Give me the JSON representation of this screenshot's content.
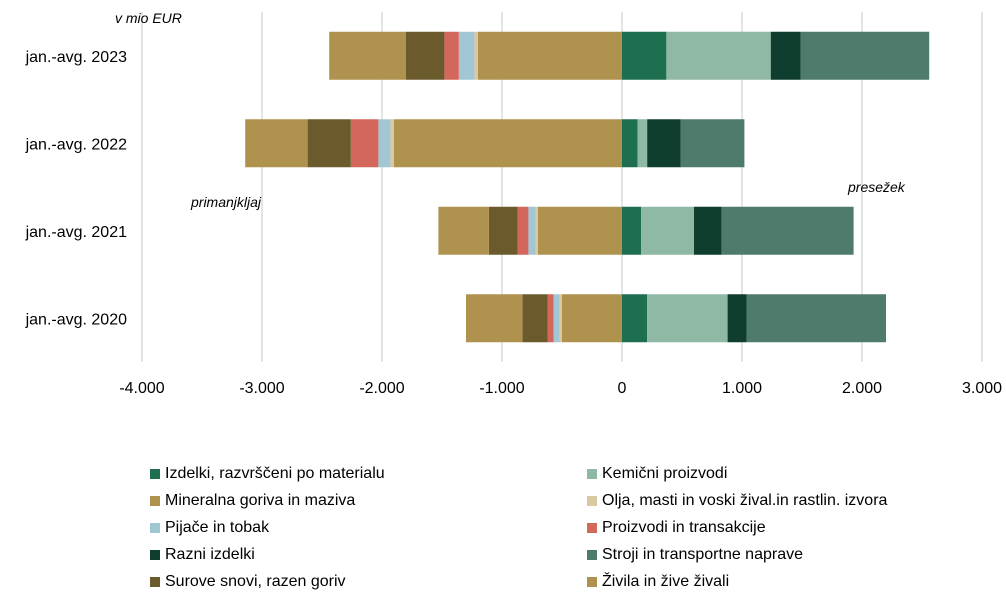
{
  "chart_data": {
    "type": "bar",
    "orientation": "horizontal",
    "stacked": true,
    "unit_label": "v mio EUR",
    "annotations": {
      "left": "primanjkljaj",
      "right": "presežek"
    },
    "categories": [
      "jan.-avg. 2023",
      "jan.-avg. 2022",
      "jan.-avg. 2021",
      "jan.-avg. 2020"
    ],
    "xlim": [
      -4000,
      3000
    ],
    "xticks": [
      -4000,
      -3000,
      -2000,
      -1000,
      0,
      1000,
      2000,
      3000
    ],
    "xtick_labels": [
      "-4.000",
      "-3.000",
      "-2.000",
      "-1.000",
      "0",
      "1.000",
      "2.000",
      "3.000"
    ],
    "grid": true,
    "legend_position": "bottom",
    "series": [
      {
        "name": "Izdelki, razvrščeni po materialu",
        "color": "#1e6e50",
        "values": [
          370,
          130,
          160,
          210
        ]
      },
      {
        "name": "Kemični proizvodi",
        "color": "#8fb8a5",
        "values": [
          870,
          80,
          440,
          670
        ]
      },
      {
        "name": "Mineralna goriva in maziva",
        "color": "#b0924f",
        "values": [
          -1200,
          -1900,
          -700,
          -500
        ]
      },
      {
        "name": "Olja, masti in voski žival.in rastlin. izvora",
        "color": "#d9c9a0",
        "values": [
          -30,
          -30,
          -20,
          -20
        ]
      },
      {
        "name": "Pijače in tobak",
        "color": "#a2c7d4",
        "values": [
          -130,
          -100,
          -60,
          -50
        ]
      },
      {
        "name": "Proizvodi in transakcije",
        "color": "#d4675c",
        "values": [
          -120,
          -230,
          -90,
          -50
        ]
      },
      {
        "name": "Razni izdelki",
        "color": "#0f3d2e",
        "values": [
          250,
          280,
          230,
          160
        ]
      },
      {
        "name": "Stroji in transportne naprave",
        "color": "#4f7b6d",
        "values": [
          1070,
          530,
          1100,
          1160
        ]
      },
      {
        "name": "Surove snovi, razen goriv",
        "color": "#6b5a2c",
        "values": [
          -320,
          -360,
          -240,
          -210
        ]
      },
      {
        "name": "Živila in žive živali",
        "color": "#b0924f",
        "values": [
          -640,
          -520,
          -420,
          -470
        ]
      }
    ]
  }
}
